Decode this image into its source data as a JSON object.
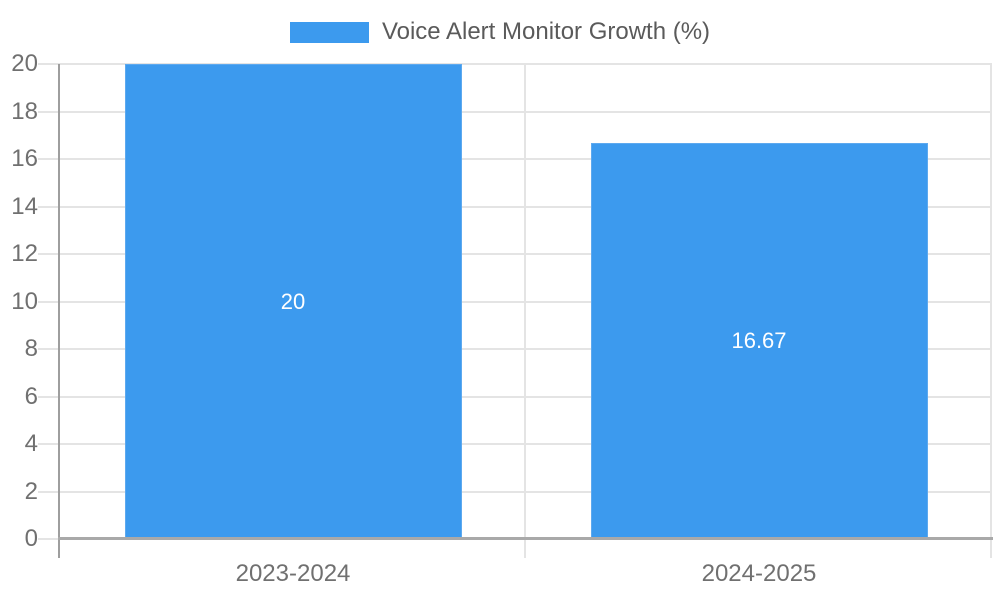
{
  "chart_data": {
    "type": "bar",
    "title": "Voice Alert Monitor Growth (%)",
    "categories": [
      "2023-2024",
      "2024-2025"
    ],
    "values": [
      20,
      16.67
    ],
    "bar_labels": [
      "20",
      "16.67"
    ],
    "yticks": [
      0,
      2,
      4,
      6,
      8,
      10,
      12,
      14,
      16,
      18,
      20
    ],
    "ylim": [
      0,
      20
    ],
    "xlabel": "",
    "ylabel": "",
    "grid": true,
    "legend_position": "top-center",
    "colors": {
      "bar": "#3c9aee",
      "bar_border": "#5da9ef",
      "bar_label_text": "#ffffff",
      "gridline": "#e4e4e4",
      "axis_line": "#9e9e9e",
      "baseline": "#a9a9a9",
      "tick_label": "#707070",
      "legend_text": "#5a5a5a",
      "background": "#ffffff"
    }
  }
}
